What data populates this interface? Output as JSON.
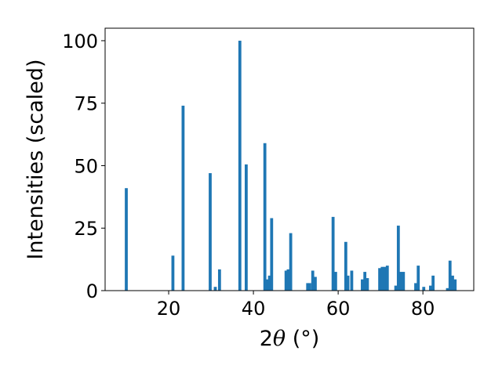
{
  "chart_data": {
    "type": "bar",
    "title": "",
    "xlabel_prefix": "2",
    "xlabel_symbol": "θ",
    "xlabel_unit": " (°)",
    "ylabel": "Intensities (scaled)",
    "xlim": [
      5,
      92
    ],
    "ylim": [
      0,
      105
    ],
    "xticks": [
      20,
      40,
      60,
      80
    ],
    "yticks": [
      0,
      25,
      50,
      75,
      100
    ],
    "grid": false,
    "bar_color": "#1f77b4",
    "bar_width": 0.7,
    "x": [
      10.0,
      21.0,
      23.4,
      29.8,
      31.0,
      32.0,
      36.8,
      38.3,
      42.7,
      43.3,
      43.8,
      44.3,
      47.7,
      48.2,
      48.8,
      52.8,
      53.3,
      54.0,
      54.6,
      58.8,
      59.4,
      61.8,
      62.3,
      63.2,
      65.7,
      66.3,
      66.9,
      69.8,
      70.4,
      71.0,
      71.6,
      73.6,
      74.2,
      74.8,
      75.4,
      78.3,
      78.9,
      80.2,
      81.8,
      82.4,
      85.8,
      86.4,
      87.0,
      87.6
    ],
    "values": [
      41,
      14,
      74,
      47,
      1.5,
      8.5,
      100,
      50.5,
      59,
      4.5,
      6,
      29,
      8,
      8.5,
      23,
      3,
      3,
      8,
      5.5,
      29.5,
      7.5,
      19.5,
      6,
      8,
      4.5,
      7.5,
      5,
      9,
      9.5,
      9.5,
      10,
      2,
      26,
      7.5,
      7.5,
      3,
      10,
      1.5,
      2,
      6,
      1,
      12,
      6,
      4.5
    ]
  }
}
